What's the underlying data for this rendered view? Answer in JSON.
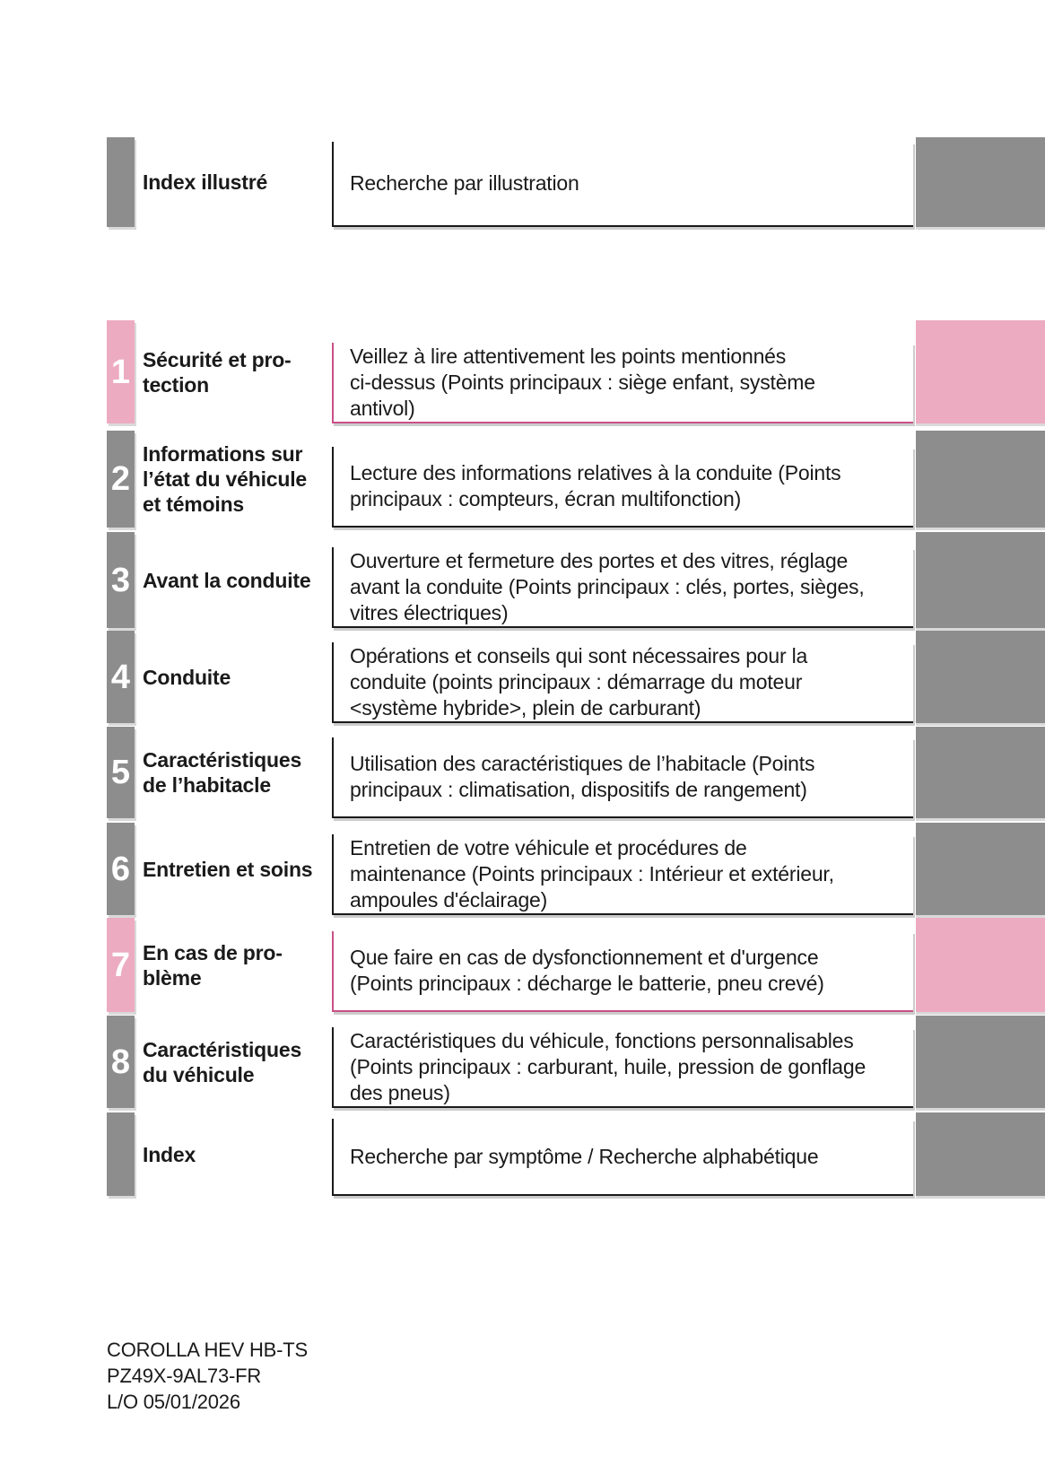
{
  "colors": {
    "pink": "#ecabc1",
    "pink_border": "#ca5187",
    "gray": "#8d8d8d",
    "text": "#1a1a1a"
  },
  "sections": [
    {
      "number": "",
      "accent": "gray",
      "label": "Index illustré",
      "description": "Recherche par illustration"
    },
    {
      "number": "1",
      "accent": "pink",
      "label": "Sécurité et pro-\ntection",
      "description": "Veillez à lire attentivement les points mentionnés\nci-dessus (Points principaux : siège enfant, système\nantivol)"
    },
    {
      "number": "2",
      "accent": "gray",
      "label": "Informations sur\nl’état du véhicule\net témoins",
      "description": "Lecture des informations relatives à la conduite (Points\nprincipaux : compteurs, écran multifonction)"
    },
    {
      "number": "3",
      "accent": "gray",
      "label": "Avant la conduite",
      "description": "Ouverture et fermeture des portes et des vitres, réglage\navant la conduite (Points principaux : clés, portes, sièges,\nvitres électriques)"
    },
    {
      "number": "4",
      "accent": "gray",
      "label": "Conduite",
      "description": "Opérations et conseils qui sont nécessaires pour la\nconduite (points principaux : démarrage du moteur\n<système hybride>, plein de carburant)"
    },
    {
      "number": "5",
      "accent": "gray",
      "label": "Caractéristiques\nde l’habitacle",
      "description": "Utilisation des caractéristiques de l’habitacle (Points\nprincipaux : climatisation, dispositifs de rangement)"
    },
    {
      "number": "6",
      "accent": "gray",
      "label": "Entretien et soins",
      "description": "Entretien de votre véhicule et procédures de\nmaintenance (Points principaux : Intérieur et extérieur,\nampoules d'éclairage)"
    },
    {
      "number": "7",
      "accent": "pink",
      "label": "En cas de pro-\nblème",
      "description": "Que faire en cas de dysfonctionnement et d'urgence\n(Points principaux : décharge le batterie, pneu crevé)"
    },
    {
      "number": "8",
      "accent": "gray",
      "label": "Caractéristiques\ndu véhicule",
      "description": "Caractéristiques du véhicule, fonctions personnalisables\n(Points principaux : carburant, huile, pression de gonflage\ndes pneus)"
    },
    {
      "number": "",
      "accent": "gray",
      "label": "Index",
      "description": "Recherche par symptôme / Recherche alphabétique"
    }
  ],
  "footer": {
    "lines": [
      "COROLLA HEV HB-TS",
      "PZ49X-9AL73-FR",
      "L/O 05/01/2026"
    ]
  }
}
